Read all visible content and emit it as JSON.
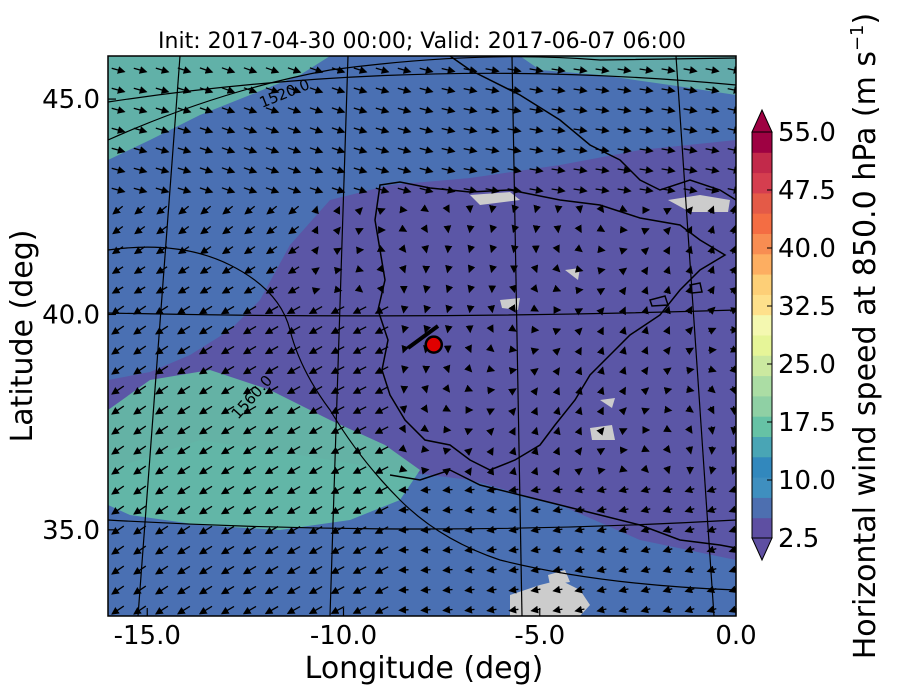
{
  "title": "Init: 2017-04-30 00:00; Valid: 2017-06-07 06:00",
  "map": {
    "xlabel": "Longitude (deg)",
    "ylabel": "Latitude (deg)",
    "x_ticks": [
      "-15.0",
      "-10.0",
      "-5.0",
      "0.0"
    ],
    "y_ticks": [
      "45.0",
      "40.0",
      "35.0"
    ],
    "x_range": [
      -16,
      0
    ],
    "y_range": [
      33,
      46
    ],
    "projection": "lambert conformal (curved graticule)",
    "variable": "horizontal wind speed at 850 hPa with wind vectors",
    "contour_labels": [
      "1520.0",
      "1560.0"
    ],
    "marker": {
      "lon": -7.7,
      "lat": 39.3,
      "color": "#e00000",
      "label": ""
    },
    "palette": {
      "low": "#5e4fa2",
      "mid": "#3288bd",
      "high": "#66c2a5",
      "missing": "#cccccc"
    }
  },
  "colorbar": {
    "label": "Horizontal wind speed at 850.0 hPa (m s",
    "label_exponent": "−1",
    "label_close": ")",
    "ticks": [
      "55.0",
      "47.5",
      "40.0",
      "32.5",
      "25.0",
      "17.5",
      "10.0",
      "2.5"
    ],
    "min": 2.5,
    "max": 55,
    "colors": [
      "#5e4fa2",
      "#4d6fb0",
      "#3f8fbf",
      "#3288bd",
      "#49a5b5",
      "#66c2a5",
      "#8fd0a4",
      "#abdda4",
      "#cbe9a0",
      "#e6f598",
      "#f4f8b0",
      "#fee08b",
      "#fdcf77",
      "#fdae61",
      "#f88d52",
      "#f46d43",
      "#e45a47",
      "#d53e4f",
      "#c2294a",
      "#9e0142"
    ]
  }
}
